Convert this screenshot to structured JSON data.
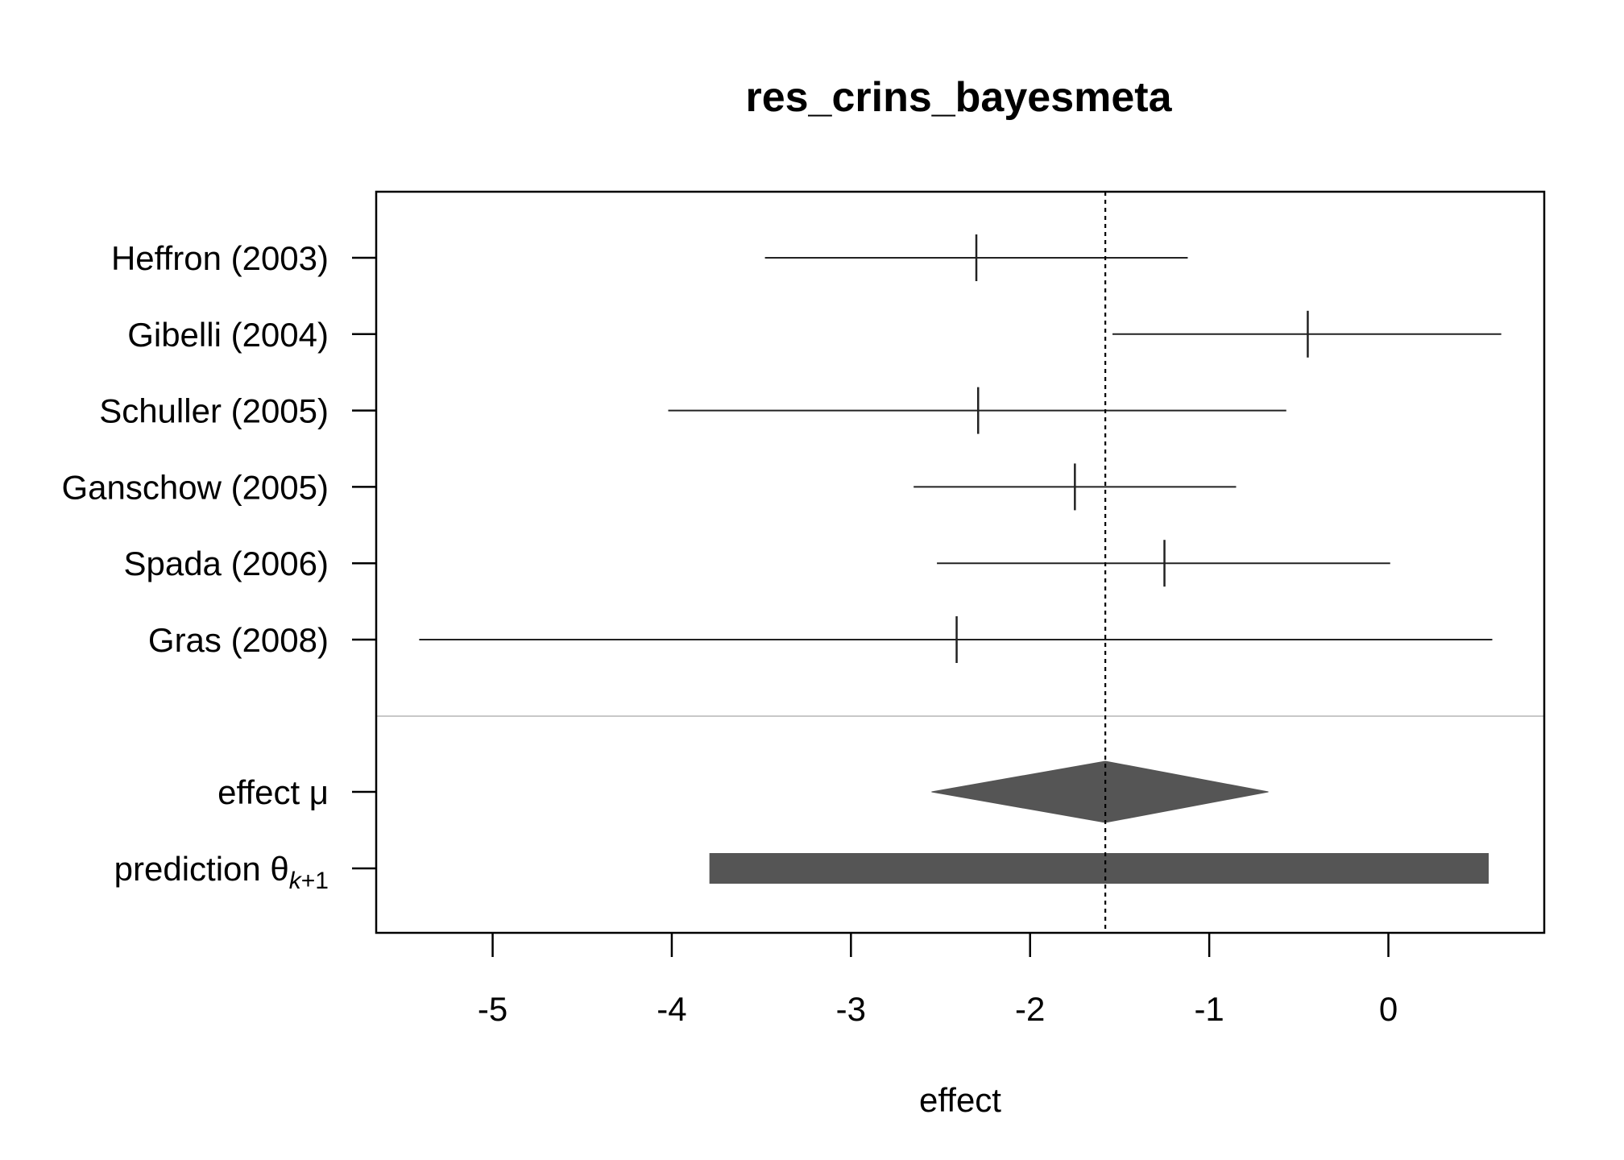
{
  "chart_data": {
    "type": "forest",
    "title": "res_crins_bayesmeta",
    "xlabel": "effect",
    "xlim": [
      -5.65,
      0.87
    ],
    "xticks": [
      -5,
      -4,
      -3,
      -2,
      -1,
      0
    ],
    "xtick_labels": [
      "-5",
      "-4",
      "-3",
      "-2",
      "-1",
      "0"
    ],
    "reference_line": {
      "x": -1.58,
      "style": "dotted"
    },
    "studies": [
      {
        "label": "Heffron (2003)",
        "estimate": -2.3,
        "lower": -3.48,
        "upper": -1.12
      },
      {
        "label": "Gibelli (2004)",
        "estimate": -0.45,
        "lower": -1.54,
        "upper": 0.63
      },
      {
        "label": "Schuller (2005)",
        "estimate": -2.29,
        "lower": -4.02,
        "upper": -0.57
      },
      {
        "label": "Ganschow (2005)",
        "estimate": -1.75,
        "lower": -2.65,
        "upper": -0.85
      },
      {
        "label": "Spada (2006)",
        "estimate": -1.25,
        "lower": -2.52,
        "upper": 0.01
      },
      {
        "label": "Gras (2008)",
        "estimate": -2.41,
        "lower": -5.41,
        "upper": 0.58
      }
    ],
    "summary": [
      {
        "key": "effect",
        "label_text": "effect ",
        "label_symbol": "μ",
        "shape": "diamond",
        "estimate": -1.58,
        "lower": -2.55,
        "upper": -0.67
      },
      {
        "key": "prediction",
        "label_text": "prediction ",
        "label_symbol": "θ",
        "label_subscript_italic": "k",
        "label_subscript_rest": "+1",
        "shape": "bar",
        "lower": -3.79,
        "upper": 0.56
      }
    ],
    "colors": {
      "axis": "#000000",
      "lines": "#222222",
      "summary_fill": "#555555",
      "separator": "#c8c8c8"
    }
  }
}
